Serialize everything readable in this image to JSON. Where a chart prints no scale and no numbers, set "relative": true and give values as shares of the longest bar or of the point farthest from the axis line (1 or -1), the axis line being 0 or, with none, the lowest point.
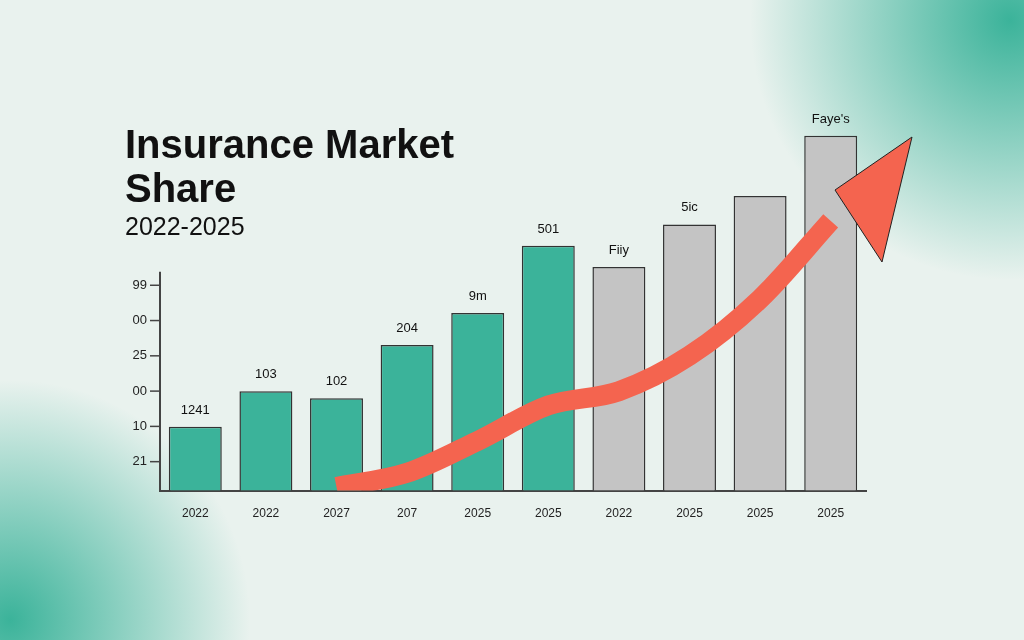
{
  "chart_data": {
    "type": "bar",
    "title": "Insurance Market Share",
    "subtitle": "2022-2025",
    "categories": [
      "2022",
      "2022",
      "2027",
      "207",
      "2025",
      "2025",
      "2022",
      "2025",
      "2025",
      "2025"
    ],
    "relative": true,
    "series": [
      {
        "colors": [
          "#3bb39a",
          "#3bb39a",
          "#3bb39a",
          "#3bb39a",
          "#3bb39a",
          "#3bb39a",
          "#c4c4c4",
          "#c4c4c4",
          "#c4c4c4",
          "#c4c4c4"
        ],
        "values": [
          0.18,
          0.28,
          0.26,
          0.41,
          0.5,
          0.69,
          0.63,
          0.75,
          0.83,
          1
        ]
      },
      {
        "type": "line",
        "color": "#f4644f",
        "values": [
          null,
          null,
          0.01,
          0.05,
          0.14,
          0.24,
          0.28,
          0.38,
          0.54,
          0.76
        ]
      }
    ],
    "annotations": [
      "99",
      "00",
      "25",
      "00",
      "10",
      "21",
      "1241",
      "103",
      "102",
      "204",
      "9m",
      "501",
      "Fiiy",
      "5ic",
      "Faye's"
    ],
    "grid": false,
    "legend": false
  }
}
